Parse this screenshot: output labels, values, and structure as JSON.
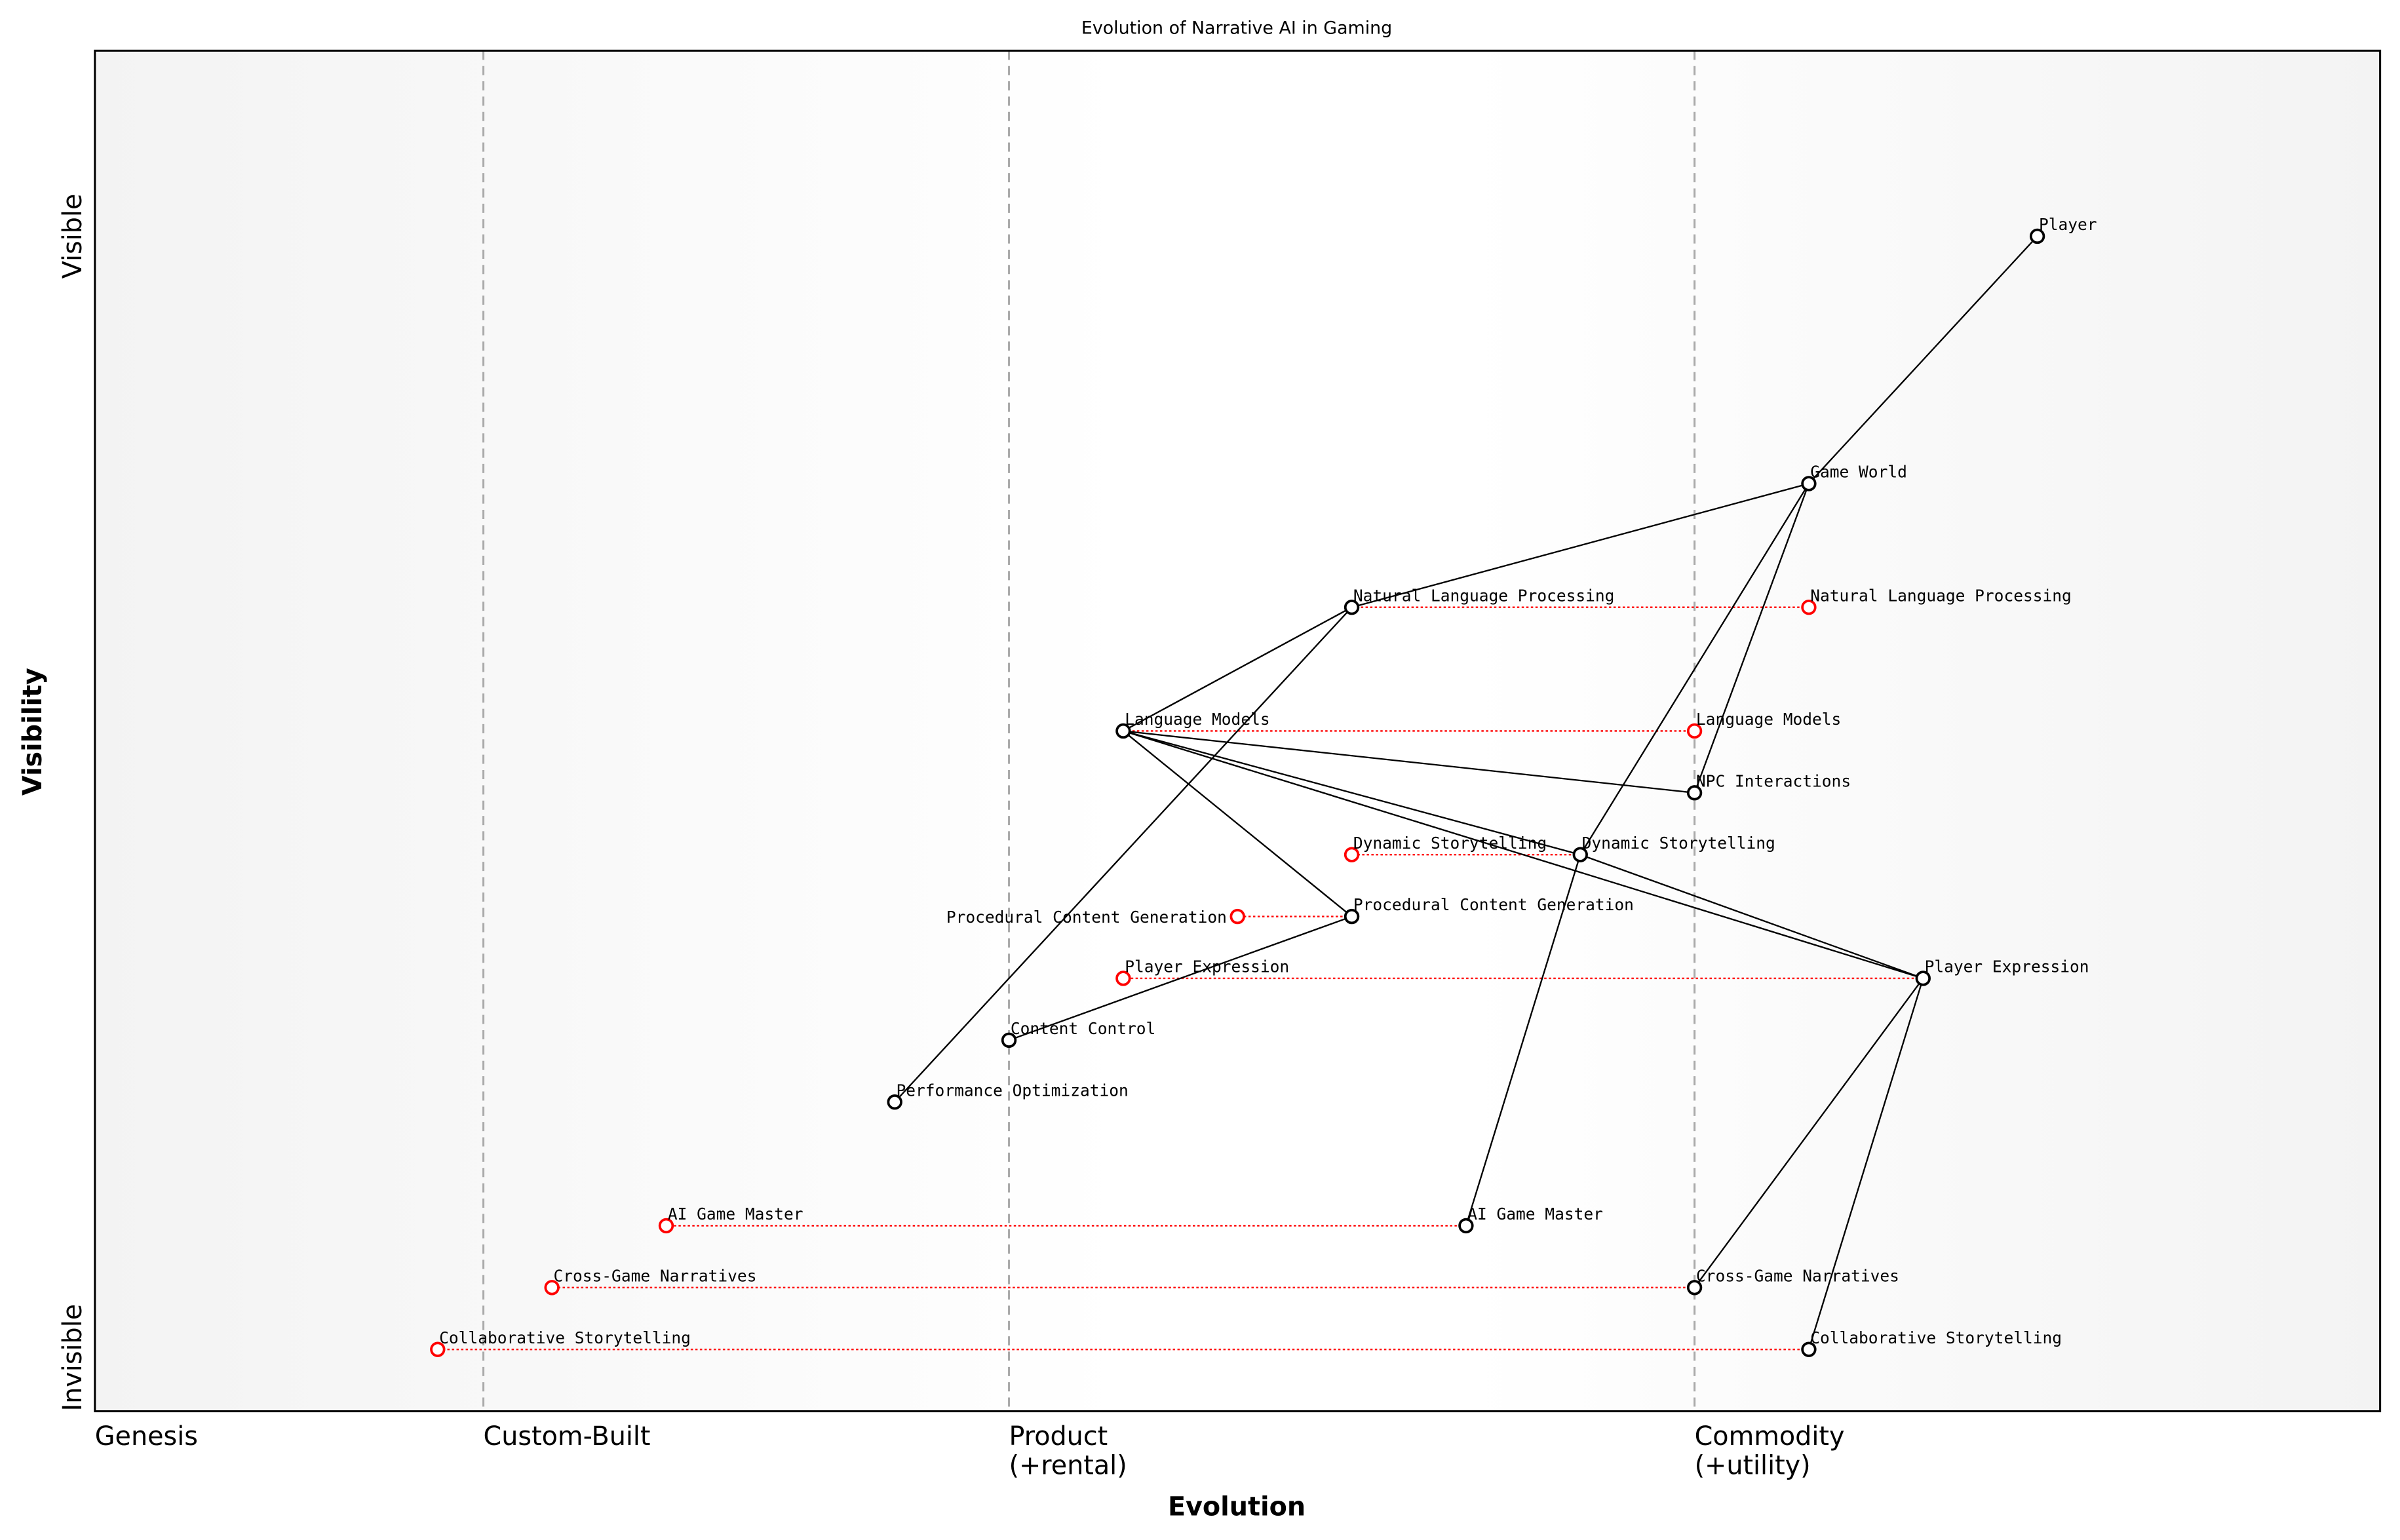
{
  "chart_data": {
    "type": "scatter",
    "subtype": "wardley-map",
    "title": "Evolution of Narrative AI in Gaming",
    "xlabel": "Evolution",
    "ylabel": "Visibility",
    "xlim": [
      0,
      1
    ],
    "ylim": [
      0,
      1.1
    ],
    "grid": false,
    "x_stages": [
      {
        "label": "Genesis",
        "x": 0.0,
        "divider": false
      },
      {
        "label": "Custom-Built",
        "x": 0.17,
        "divider": true
      },
      {
        "label": "Product\n(+rental)",
        "x": 0.4,
        "divider": true
      },
      {
        "label": "Commodity\n(+utility)",
        "x": 0.7,
        "divider": true
      }
    ],
    "y_ticks": [
      {
        "label": "Invisible",
        "y": 0.0
      },
      {
        "label": "Visible",
        "y": 0.95
      }
    ],
    "colors": {
      "component": "#000000",
      "evolution": "#ff0000",
      "divider": "#aaaaaa",
      "edge_band": "#f3f3f3",
      "center_band": "#ffffff"
    },
    "components": [
      {
        "name": "Player",
        "x": 0.85,
        "y": 0.95
      },
      {
        "name": "Game World",
        "x": 0.75,
        "y": 0.75
      },
      {
        "name": "Natural Language Processing",
        "x": 0.55,
        "y": 0.65
      },
      {
        "name": "Language Models",
        "x": 0.45,
        "y": 0.55
      },
      {
        "name": "NPC Interactions",
        "x": 0.7,
        "y": 0.5
      },
      {
        "name": "Dynamic Storytelling",
        "x": 0.65,
        "y": 0.45
      },
      {
        "name": "Procedural Content Generation",
        "x": 0.55,
        "y": 0.4
      },
      {
        "name": "Player Expression",
        "x": 0.8,
        "y": 0.35
      },
      {
        "name": "Content Control",
        "x": 0.4,
        "y": 0.3
      },
      {
        "name": "Performance Optimization",
        "x": 0.35,
        "y": 0.25
      },
      {
        "name": "AI Game Master",
        "x": 0.6,
        "y": 0.15
      },
      {
        "name": "Cross-Game Narratives",
        "x": 0.7,
        "y": 0.1
      },
      {
        "name": "Collaborative Storytelling",
        "x": 0.75,
        "y": 0.05
      }
    ],
    "evolutions": [
      {
        "name": "Natural Language Processing",
        "x": 0.75,
        "y": 0.65
      },
      {
        "name": "Language Models",
        "x": 0.7,
        "y": 0.55
      },
      {
        "name": "Dynamic Storytelling",
        "x": 0.55,
        "y": 0.45
      },
      {
        "name": "Procedural Content Generation",
        "x": 0.5,
        "y": 0.4
      },
      {
        "name": "Player Expression",
        "x": 0.45,
        "y": 0.35
      },
      {
        "name": "AI Game Master",
        "x": 0.25,
        "y": 0.15
      },
      {
        "name": "Cross-Game Narratives",
        "x": 0.2,
        "y": 0.1
      },
      {
        "name": "Collaborative Storytelling",
        "x": 0.15,
        "y": 0.05
      }
    ],
    "links": [
      [
        "Player",
        "Game World"
      ],
      [
        "Game World",
        "Natural Language Processing"
      ],
      [
        "Game World",
        "NPC Interactions"
      ],
      [
        "Game World",
        "Dynamic Storytelling"
      ],
      [
        "Natural Language Processing",
        "Language Models"
      ],
      [
        "Natural Language Processing",
        "Performance Optimization"
      ],
      [
        "Language Models",
        "NPC Interactions"
      ],
      [
        "Language Models",
        "Dynamic Storytelling"
      ],
      [
        "Language Models",
        "Player Expression"
      ],
      [
        "Language Models",
        "Procedural Content Generation"
      ],
      [
        "Dynamic Storytelling",
        "Player Expression"
      ],
      [
        "Dynamic Storytelling",
        "AI Game Master"
      ],
      [
        "Procedural Content Generation",
        "Content Control"
      ],
      [
        "Player Expression",
        "Cross-Game Narratives"
      ],
      [
        "Player Expression",
        "Collaborative Storytelling"
      ]
    ]
  }
}
